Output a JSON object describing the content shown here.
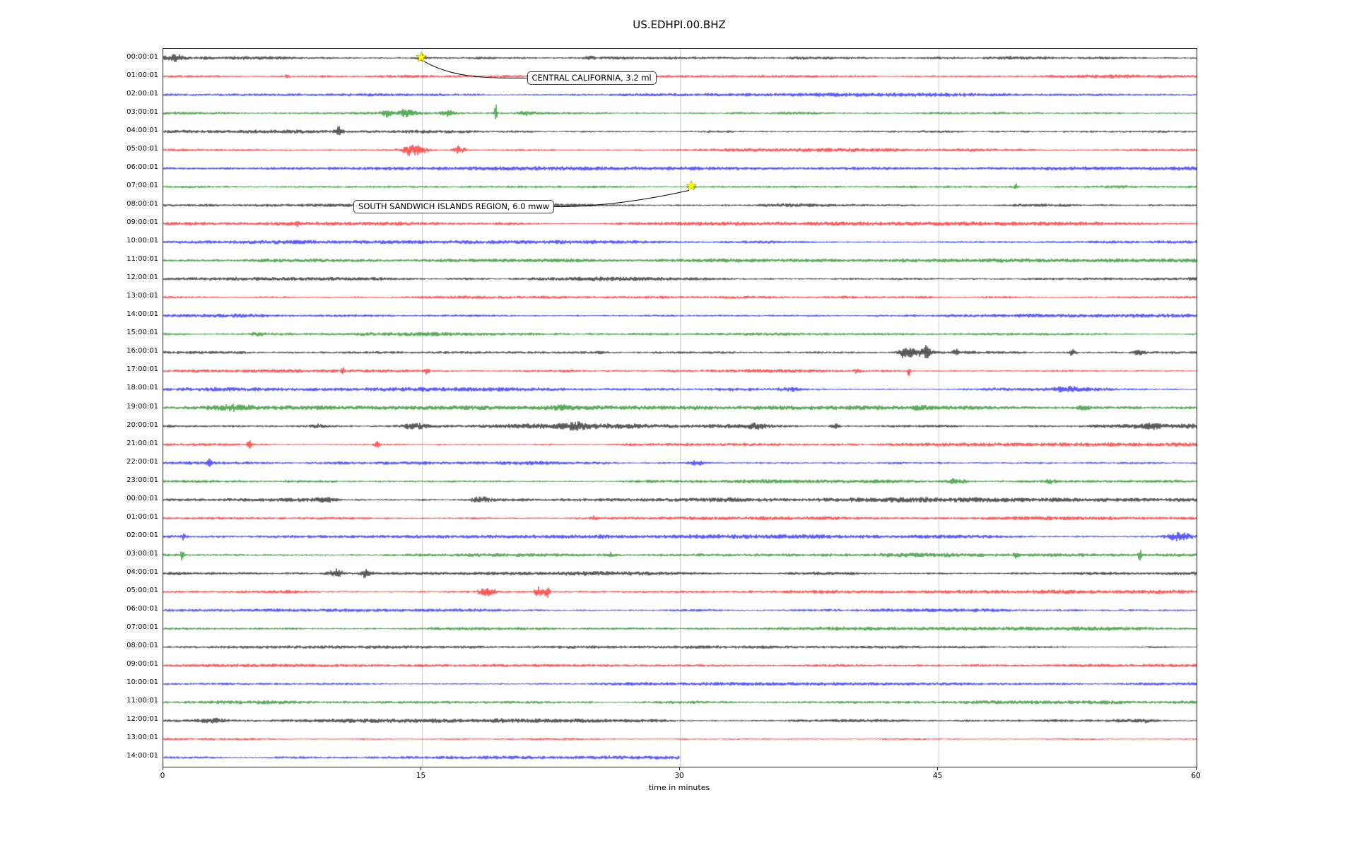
{
  "chart_data": {
    "type": "line",
    "subtype": "helicorder-seismogram",
    "title": "US.EDHPI.00.BHZ",
    "xlabel": "time in minutes",
    "xlim": [
      0,
      60
    ],
    "x_ticks": [
      0,
      15,
      30,
      45,
      60
    ],
    "grid": "vertical gridlines at 15, 30, 45 minutes",
    "legend": "none",
    "trace_color_cycle": [
      "#000000",
      "#ff0000",
      "#0000ff",
      "#008000"
    ],
    "rows": [
      {
        "label": "00:00:01",
        "color": "#000000",
        "amp": 2.3,
        "bursts": [
          [
            0.6,
            0.35,
            5
          ],
          [
            15.0,
            0.15,
            6
          ],
          [
            24.8,
            0.2,
            3
          ]
        ]
      },
      {
        "label": "01:00:01",
        "color": "#ff0000",
        "amp": 1.8,
        "bursts": [
          [
            7.2,
            0.08,
            3
          ]
        ]
      },
      {
        "label": "02:00:01",
        "color": "#0000ff",
        "amp": 1.8,
        "bursts": []
      },
      {
        "label": "03:00:01",
        "color": "#008000",
        "amp": 2.0,
        "bursts": [
          [
            13.0,
            0.2,
            5
          ],
          [
            14.2,
            0.3,
            7
          ],
          [
            16.6,
            0.3,
            5
          ],
          [
            19.3,
            0.05,
            27
          ],
          [
            21.0,
            0.3,
            3
          ]
        ]
      },
      {
        "label": "04:00:01",
        "color": "#000000",
        "amp": 2.0,
        "bursts": [
          [
            10.2,
            0.15,
            8
          ]
        ]
      },
      {
        "label": "05:00:01",
        "color": "#ff0000",
        "amp": 1.8,
        "bursts": [
          [
            14.6,
            0.5,
            9
          ],
          [
            17.2,
            0.25,
            6
          ]
        ]
      },
      {
        "label": "06:00:01",
        "color": "#0000ff",
        "amp": 1.8,
        "bursts": []
      },
      {
        "label": "07:00:01",
        "color": "#008000",
        "amp": 1.8,
        "bursts": [
          [
            30.7,
            0.12,
            5
          ],
          [
            49.5,
            0.08,
            4
          ]
        ]
      },
      {
        "label": "08:00:01",
        "color": "#000000",
        "amp": 2.0,
        "bursts": []
      },
      {
        "label": "09:00:01",
        "color": "#ff0000",
        "amp": 1.8,
        "bursts": [
          [
            7.8,
            0.08,
            3
          ]
        ]
      },
      {
        "label": "10:00:01",
        "color": "#0000ff",
        "amp": 1.8,
        "bursts": []
      },
      {
        "label": "11:00:01",
        "color": "#008000",
        "amp": 1.8,
        "bursts": []
      },
      {
        "label": "12:00:01",
        "color": "#000000",
        "amp": 2.0,
        "bursts": []
      },
      {
        "label": "13:00:01",
        "color": "#ff0000",
        "amp": 1.8,
        "bursts": []
      },
      {
        "label": "14:00:01",
        "color": "#0000ff",
        "amp": 1.8,
        "bursts": []
      },
      {
        "label": "15:00:01",
        "color": "#008000",
        "amp": 1.9,
        "bursts": [
          [
            5.5,
            0.3,
            3
          ]
        ]
      },
      {
        "label": "16:00:01",
        "color": "#000000",
        "amp": 2.3,
        "bursts": [
          [
            43.2,
            0.3,
            13
          ],
          [
            44.2,
            0.25,
            11
          ],
          [
            46.0,
            0.1,
            6
          ],
          [
            52.8,
            0.15,
            5
          ],
          [
            56.6,
            0.25,
            5
          ]
        ]
      },
      {
        "label": "17:00:01",
        "color": "#ff0000",
        "amp": 1.8,
        "bursts": [
          [
            10.4,
            0.07,
            5
          ],
          [
            15.3,
            0.1,
            6
          ],
          [
            40.3,
            0.1,
            7
          ],
          [
            43.3,
            0.07,
            8
          ]
        ]
      },
      {
        "label": "18:00:01",
        "color": "#0000ff",
        "amp": 2.0,
        "bursts": [
          [
            33.0,
            1.5,
            2
          ],
          [
            36.5,
            0.5,
            3
          ],
          [
            52.5,
            1.0,
            3
          ]
        ]
      },
      {
        "label": "19:00:01",
        "color": "#008000",
        "amp": 2.0,
        "bursts": [
          [
            4.0,
            0.8,
            3
          ],
          [
            23.0,
            0.5,
            2
          ],
          [
            44.0,
            0.3,
            3
          ],
          [
            53.5,
            0.4,
            3
          ]
        ]
      },
      {
        "label": "20:00:01",
        "color": "#000000",
        "amp": 2.4,
        "bursts": [
          [
            9.0,
            0.3,
            3
          ],
          [
            14.5,
            0.6,
            4
          ],
          [
            24.0,
            0.5,
            4
          ],
          [
            34.5,
            0.4,
            4
          ],
          [
            39.0,
            0.15,
            5
          ],
          [
            57.5,
            0.3,
            4
          ]
        ]
      },
      {
        "label": "21:00:01",
        "color": "#ff0000",
        "amp": 1.8,
        "bursts": [
          [
            5.0,
            0.1,
            6
          ],
          [
            12.4,
            0.12,
            8
          ]
        ]
      },
      {
        "label": "22:00:01",
        "color": "#0000ff",
        "amp": 1.9,
        "bursts": [
          [
            2.7,
            0.1,
            5
          ],
          [
            31.0,
            0.3,
            4
          ]
        ]
      },
      {
        "label": "23:00:01",
        "color": "#008000",
        "amp": 1.9,
        "bursts": [
          [
            46.0,
            0.5,
            3
          ],
          [
            51.5,
            0.2,
            4
          ]
        ]
      },
      {
        "label": "00:00:01",
        "color": "#000000",
        "amp": 2.3,
        "bursts": [
          [
            9.5,
            0.4,
            4
          ],
          [
            18.5,
            0.4,
            4
          ]
        ]
      },
      {
        "label": "01:00:01",
        "color": "#ff0000",
        "amp": 1.8,
        "bursts": [
          [
            25.0,
            0.1,
            4
          ]
        ]
      },
      {
        "label": "02:00:01",
        "color": "#0000ff",
        "amp": 2.0,
        "bursts": [
          [
            1.2,
            0.1,
            5
          ],
          [
            59.0,
            0.5,
            6
          ]
        ]
      },
      {
        "label": "03:00:01",
        "color": "#008000",
        "amp": 2.0,
        "bursts": [
          [
            1.1,
            0.06,
            14
          ],
          [
            26.0,
            0.1,
            4
          ],
          [
            49.5,
            0.1,
            5
          ],
          [
            56.7,
            0.06,
            12
          ]
        ]
      },
      {
        "label": "04:00:01",
        "color": "#000000",
        "amp": 2.0,
        "bursts": [
          [
            10.0,
            0.3,
            6
          ],
          [
            11.8,
            0.2,
            8
          ]
        ]
      },
      {
        "label": "05:00:01",
        "color": "#ff0000",
        "amp": 1.8,
        "bursts": [
          [
            18.8,
            0.3,
            8
          ],
          [
            21.8,
            0.15,
            9
          ],
          [
            22.3,
            0.1,
            12
          ]
        ]
      },
      {
        "label": "06:00:01",
        "color": "#0000ff",
        "amp": 1.8,
        "bursts": []
      },
      {
        "label": "07:00:01",
        "color": "#008000",
        "amp": 1.8,
        "bursts": []
      },
      {
        "label": "08:00:01",
        "color": "#000000",
        "amp": 1.4,
        "bursts": []
      },
      {
        "label": "09:00:01",
        "color": "#ff0000",
        "amp": 1.5,
        "bursts": []
      },
      {
        "label": "10:00:01",
        "color": "#0000ff",
        "amp": 1.6,
        "bursts": []
      },
      {
        "label": "11:00:01",
        "color": "#008000",
        "amp": 1.7,
        "bursts": []
      },
      {
        "label": "12:00:01",
        "color": "#000000",
        "amp": 2.0,
        "bursts": [
          [
            3.0,
            0.5,
            3
          ],
          [
            57.0,
            0.5,
            3
          ]
        ]
      },
      {
        "label": "13:00:01",
        "color": "#ff0000",
        "amp": 1.5,
        "bursts": []
      },
      {
        "label": "14:00:01",
        "color": "#0000ff",
        "amp": 1.7,
        "end": 30,
        "bursts": []
      }
    ],
    "events": [
      {
        "label": "CENTRAL CALIFORNIA, 3.2 ml",
        "row": 0,
        "minute": 15.0,
        "marker": "yellow-star"
      },
      {
        "label": "SOUTH SANDWICH ISLANDS REGION, 6.0 mww",
        "row": 7,
        "minute": 30.7,
        "marker": "yellow-star"
      }
    ]
  }
}
